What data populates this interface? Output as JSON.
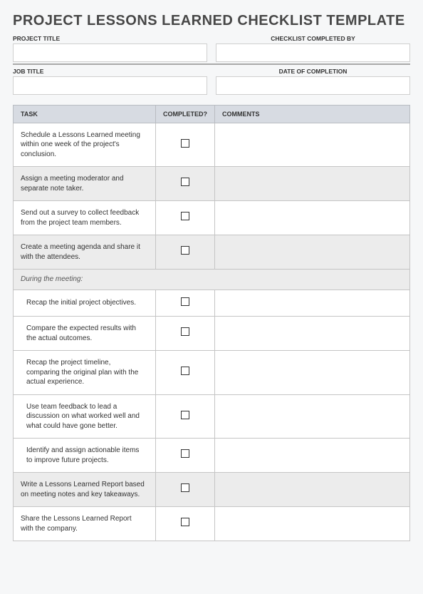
{
  "title": "PROJECT LESSONS LEARNED CHECKLIST TEMPLATE",
  "meta": {
    "projectTitleLabel": "PROJECT TITLE",
    "projectTitleValue": "",
    "completedByLabel": "CHECKLIST COMPLETED BY",
    "completedByValue": "",
    "jobTitleLabel": "JOB TITLE",
    "jobTitleValue": "",
    "completionDateLabel": "DATE OF COMPLETION",
    "completionDateValue": ""
  },
  "columns": {
    "task": "TASK",
    "completed": "COMPLETED?",
    "comments": "COMMENTS"
  },
  "sectionLabel": "During the meeting:",
  "tasksTop": [
    {
      "text": "Schedule a Lessons Learned meeting within one week of the project's conclusion.",
      "alt": false
    },
    {
      "text": "Assign a meeting moderator and separate note taker.",
      "alt": true
    },
    {
      "text": "Send out a survey to collect feedback from the project team members.",
      "alt": false
    },
    {
      "text": "Create a meeting agenda and share it with the attendees.",
      "alt": true
    }
  ],
  "tasksMeeting": [
    {
      "text": "Recap the initial project objectives.",
      "alt": false
    },
    {
      "text": "Compare the expected results with the actual outcomes.",
      "alt": false
    },
    {
      "text": "Recap the project timeline, comparing the original plan with the actual experience.",
      "alt": false
    },
    {
      "text": "Use team feedback to lead a discussion on what worked well and what could have gone better.",
      "alt": false
    },
    {
      "text": "Identify and assign actionable items to improve future projects.",
      "alt": false
    }
  ],
  "tasksBottom": [
    {
      "text": "Write a Lessons Learned Report based on meeting notes and key takeaways.",
      "alt": true
    },
    {
      "text": "Share the Lessons Learned Report with the company.",
      "alt": false
    }
  ],
  "colors": {
    "pageBg": "#f6f7f8",
    "headerBg": "#d7dbe2",
    "altRowBg": "#ececec",
    "border": "#c5c5c5"
  }
}
